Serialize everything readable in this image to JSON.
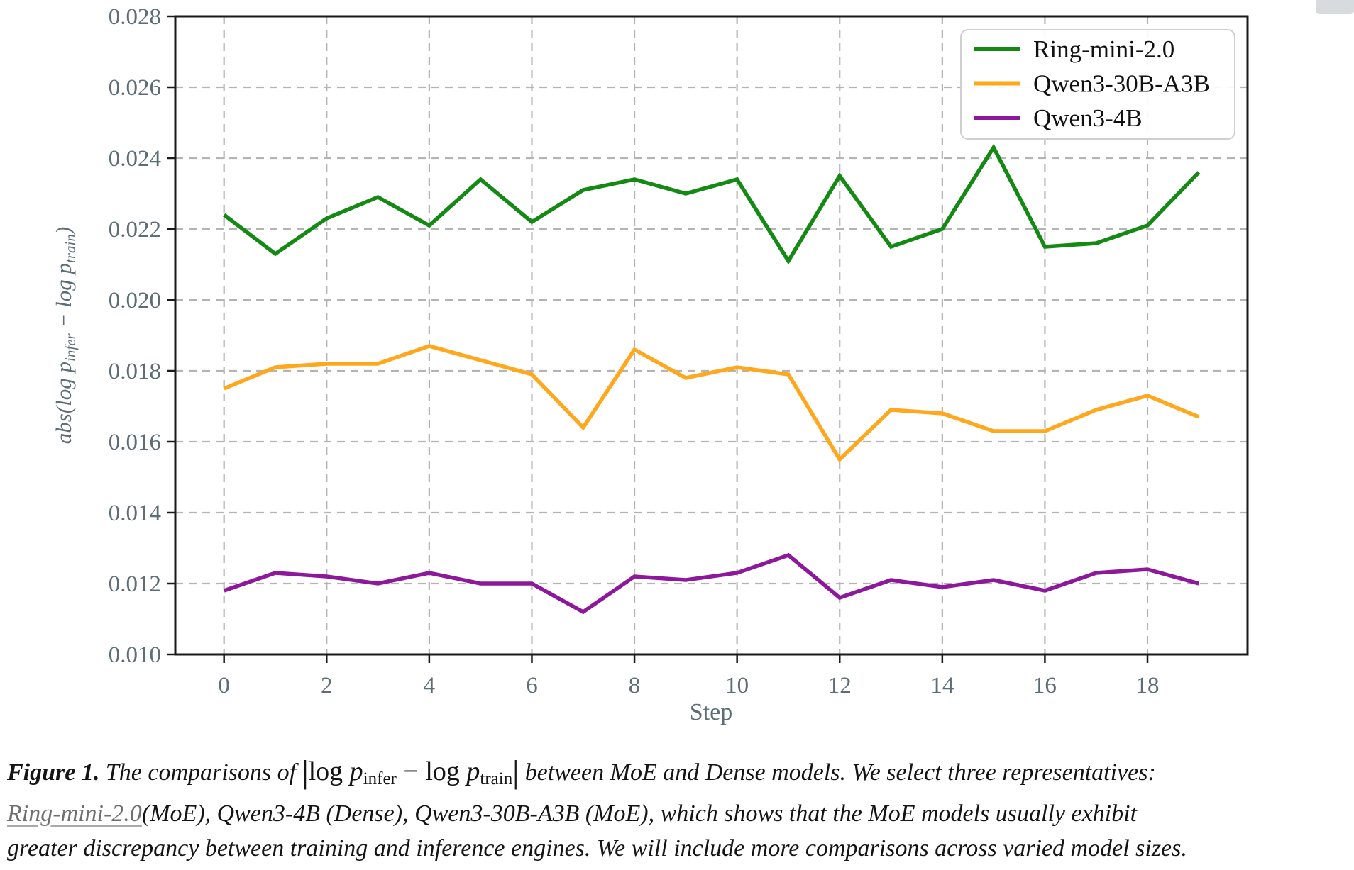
{
  "chart_data": {
    "type": "line",
    "title": "",
    "xlabel": "Step",
    "ylabel": "abs(log p_infer − log p_train)",
    "ylabel_parts": [
      {
        "text": "abs(log p",
        "sub": false
      },
      {
        "text": "infer",
        "sub": true
      },
      {
        "text": " − log p",
        "sub": false
      },
      {
        "text": "train",
        "sub": true
      },
      {
        "text": ")",
        "sub": false
      }
    ],
    "x": [
      0,
      1,
      2,
      3,
      4,
      5,
      6,
      7,
      8,
      9,
      10,
      11,
      12,
      13,
      14,
      15,
      16,
      17,
      18,
      19
    ],
    "xticks": [
      0,
      2,
      4,
      6,
      8,
      10,
      12,
      14,
      16,
      18
    ],
    "yticks": [
      "0.010",
      "0.012",
      "0.014",
      "0.016",
      "0.018",
      "0.020",
      "0.022",
      "0.024",
      "0.026",
      "0.028"
    ],
    "xlim": [
      -0.95,
      19.95
    ],
    "ylim": [
      0.01,
      0.028
    ],
    "grid": true,
    "legend_position": "upper right",
    "series": [
      {
        "name": "Ring-mini-2.0",
        "color": "#148a14",
        "values": [
          0.0224,
          0.0213,
          0.0223,
          0.0229,
          0.0221,
          0.0234,
          0.0222,
          0.0231,
          0.0234,
          0.023,
          0.0234,
          0.0211,
          0.0235,
          0.0215,
          0.022,
          0.0243,
          0.0215,
          0.0216,
          0.0221,
          0.0236
        ]
      },
      {
        "name": "Qwen3-30B-A3B",
        "color": "#ffa71d",
        "values": [
          0.0175,
          0.0181,
          0.0182,
          0.0182,
          0.0187,
          0.0183,
          0.0179,
          0.0164,
          0.0186,
          0.0178,
          0.0181,
          0.0179,
          0.0155,
          0.0169,
          0.0168,
          0.0163,
          0.0163,
          0.0169,
          0.0173,
          0.0167
        ]
      },
      {
        "name": "Qwen3-4B",
        "color": "#8e189b",
        "values": [
          0.0118,
          0.0123,
          0.0122,
          0.012,
          0.0123,
          0.012,
          0.012,
          0.0112,
          0.0122,
          0.0121,
          0.0123,
          0.0128,
          0.0116,
          0.0121,
          0.0119,
          0.0121,
          0.0118,
          0.0123,
          0.0124,
          0.012
        ]
      }
    ]
  },
  "caption": {
    "lines": [
      [
        {
          "t": "Figure 1",
          "s": "figlabel"
        },
        {
          "t": ". ",
          "s": "figlabel"
        },
        {
          "t": "The comparisons of ",
          "s": "i"
        },
        {
          "t": "|",
          "s": "bar"
        },
        {
          "t": "log ",
          "s": "m"
        },
        {
          "t": "p",
          "s": "mi"
        },
        {
          "t": "infer",
          "s": "msub"
        },
        {
          "t": " − ",
          "s": "m"
        },
        {
          "t": "log ",
          "s": "m"
        },
        {
          "t": "p",
          "s": "mi"
        },
        {
          "t": "train",
          "s": "msub"
        },
        {
          "t": "|",
          "s": "bar"
        },
        {
          "t": " between MoE and Dense models. We select three representatives:",
          "s": "i"
        }
      ],
      [
        {
          "t": "Ring-mini-2.0",
          "s": "link"
        },
        {
          "t": "(MoE), Qwen3-4B (Dense), Qwen3-30B-A3B (MoE), which shows that the MoE models usually exhibit",
          "s": "i"
        }
      ],
      [
        {
          "t": "greater discrepancy between training and inference engines. We will include more comparisons across varied model sizes.",
          "s": "i"
        }
      ]
    ]
  },
  "colors": {
    "axis_text": "#5c6d75",
    "grid": "#b4b4b4",
    "border": "#1a1a1a",
    "legend_border": "#cfcfcf",
    "legend_text": "#111111",
    "caption_text": "#141414",
    "link": "#6f6f6f"
  }
}
